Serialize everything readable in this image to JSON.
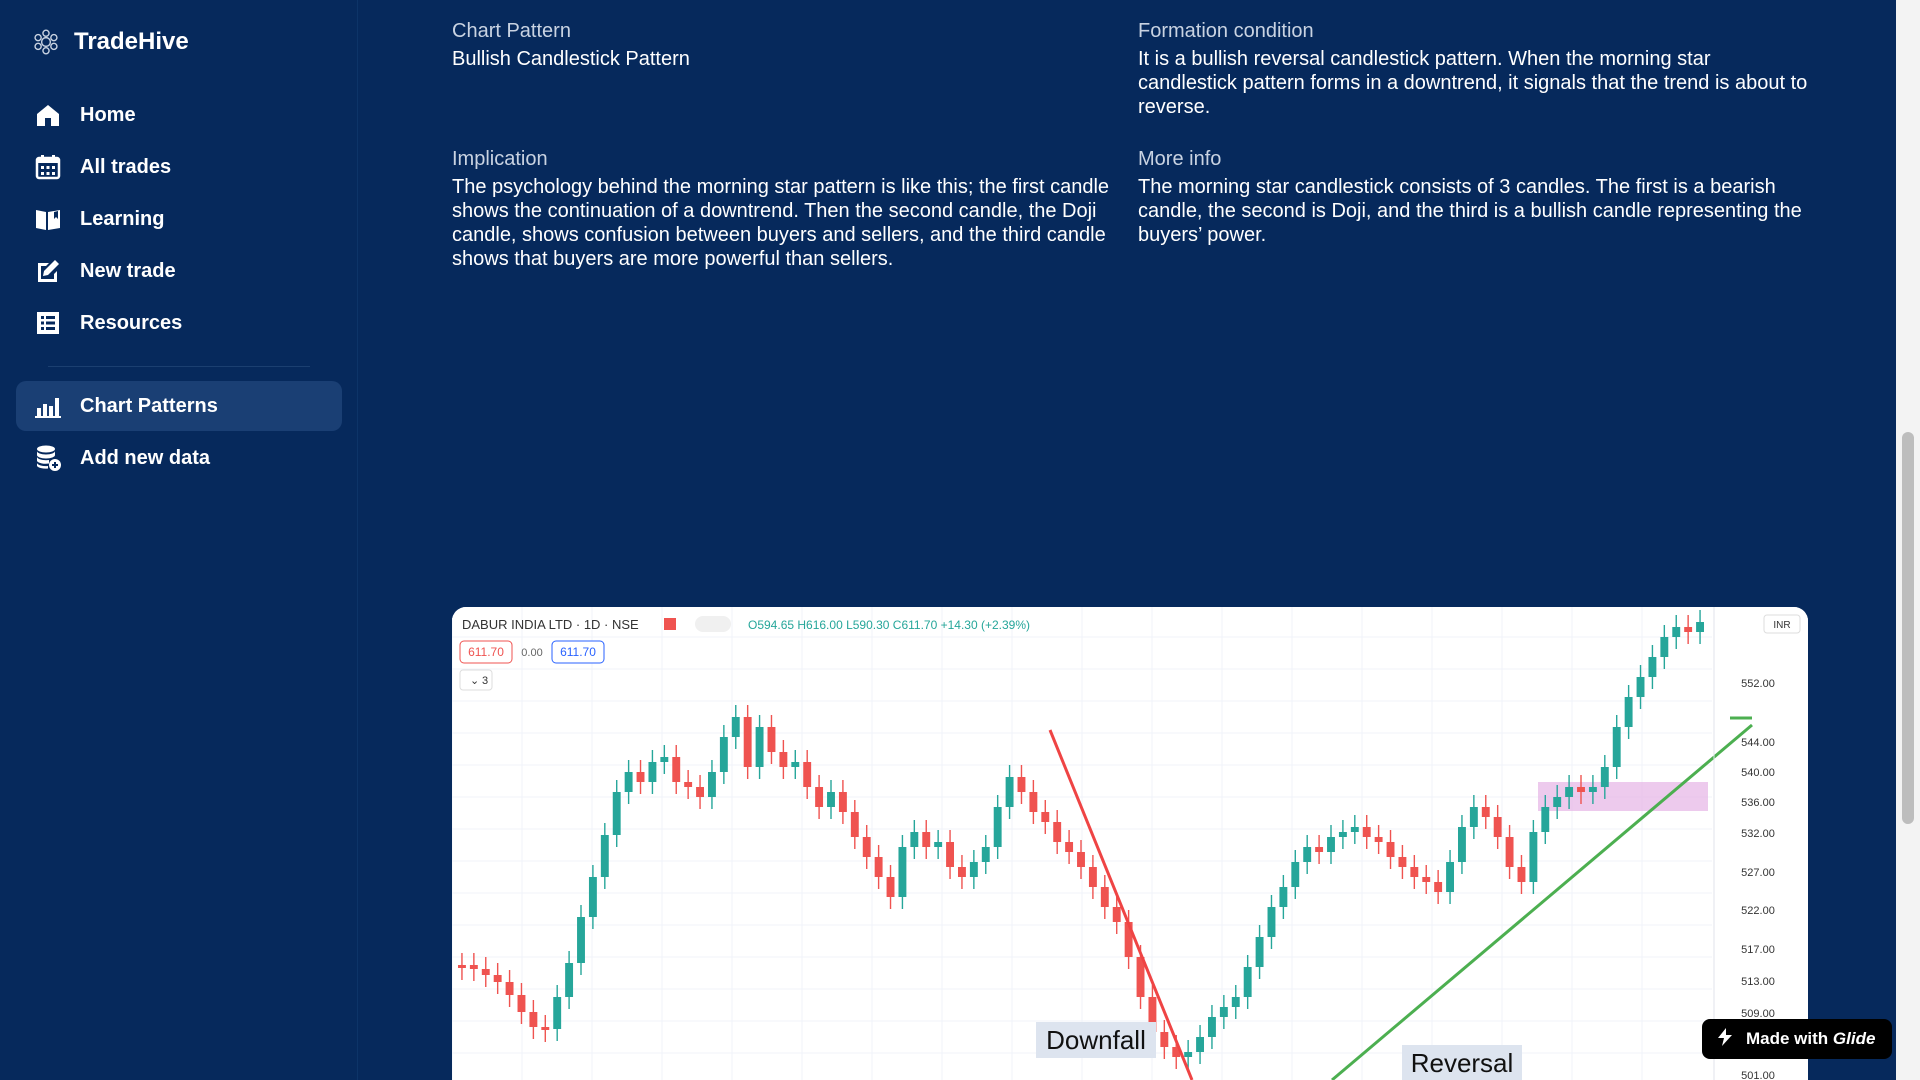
{
  "app": {
    "name": "TradeHive"
  },
  "sidebar": {
    "items": [
      {
        "label": "Home",
        "icon": "home-icon"
      },
      {
        "label": "All trades",
        "icon": "calendar-icon"
      },
      {
        "label": "Learning",
        "icon": "book-icon"
      },
      {
        "label": "New trade",
        "icon": "edit-icon"
      },
      {
        "label": "Resources",
        "icon": "list-icon"
      }
    ],
    "secondary": [
      {
        "label": "Chart Patterns",
        "icon": "bar-chart-icon",
        "active": true
      },
      {
        "label": "Add new data",
        "icon": "database-add-icon"
      }
    ]
  },
  "details": {
    "chart_pattern_label": "Chart Pattern",
    "chart_pattern_value": "Bullish Candlestick Pattern",
    "formation_label": "Formation condition",
    "formation_value": "It is a bullish reversal candlestick pattern. When the morning star candlestick pattern forms in a downtrend, it signals that the trend is about to reverse.",
    "implication_label": "Implication",
    "implication_value": "The psychology behind the morning star pattern is like this; the first candle shows the continuation of a downtrend. Then the second candle, the Doji candle, shows confusion between buyers and sellers, and the third candle shows that buyers are more powerful than sellers.",
    "more_info_label": "More info",
    "more_info_value": "The morning star candlestick consists of 3 candles. The first is a bearish candle, the second is Doji, and the third is a bullish candle representing the buyers’ power."
  },
  "chart_image": {
    "header": "DABUR INDIA LTD · 1D · NSE",
    "ohlc": "O594.65 H616.00 L590.30 C611.70 +14.30 (+2.39%)",
    "sell_price": "611.70",
    "spread": "0.00",
    "buy_price": "611.70",
    "indicator_count": "3",
    "currency": "INR",
    "annotations": [
      "Downfall",
      "Reversal"
    ],
    "colors": {
      "bull": "#26a69a",
      "bear": "#ef5350",
      "downtrend_line": "#ef4444",
      "uptrend_line": "#4caf50",
      "zone": "#e6b3e6"
    }
  },
  "chart_data": {
    "type": "candlestick",
    "y_ticks": [
      "552.00",
      "544.00",
      "540.00",
      "536.00",
      "532.00",
      "527.00",
      "522.00",
      "517.00",
      "513.00",
      "509.00",
      "501.00"
    ]
  },
  "footer": {
    "made_with": "Made with",
    "brand": "Glide"
  }
}
